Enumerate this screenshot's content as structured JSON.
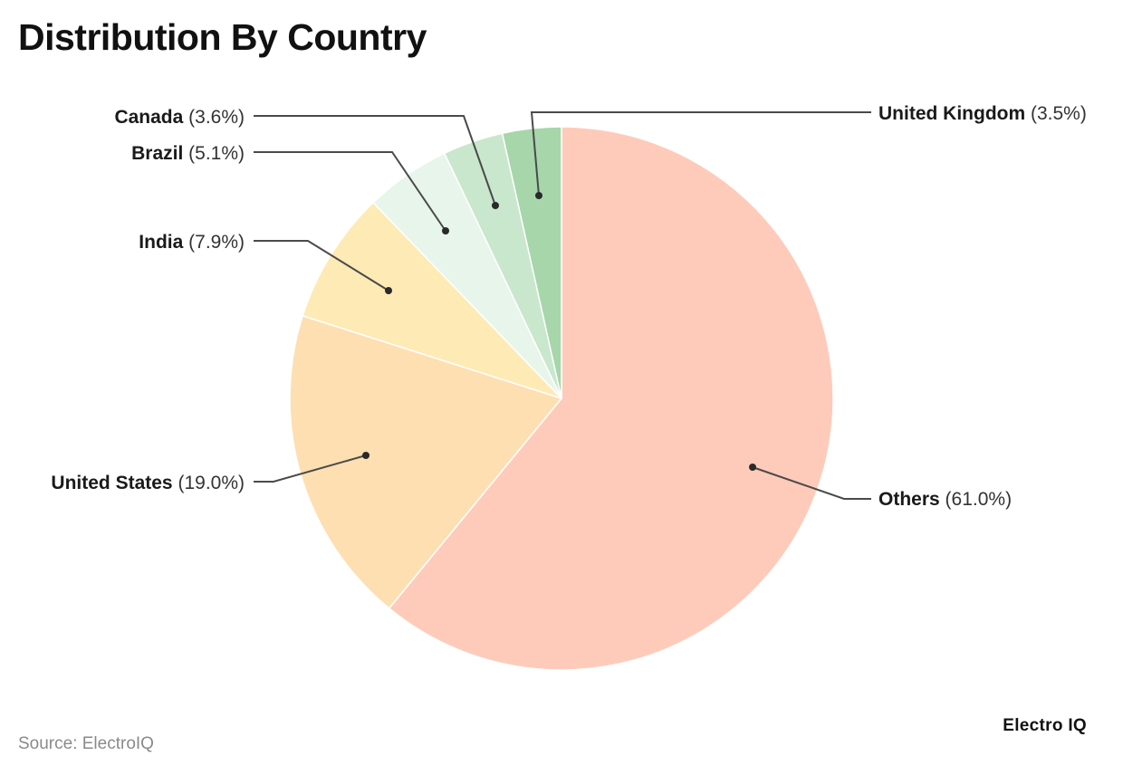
{
  "title": "Distribution By Country",
  "footer": {
    "source": "Source: ElectroIQ",
    "brand": "Electro IQ"
  },
  "chart_data": {
    "type": "pie",
    "title": "Distribution By Country",
    "start_angle_deg": 0,
    "direction": "clockwise",
    "slices": [
      {
        "label": "Others",
        "value": 61.0,
        "display": "(61.0%)",
        "color": "#FECBBA"
      },
      {
        "label": "United States",
        "value": 19.0,
        "display": "(19.0%)",
        "color": "#FDDFB2"
      },
      {
        "label": "India",
        "value": 7.9,
        "display": "(7.9%)",
        "color": "#FEEAB5"
      },
      {
        "label": "Brazil",
        "value": 5.1,
        "display": "(5.1%)",
        "color": "#E8F5EA"
      },
      {
        "label": "Canada",
        "value": 3.6,
        "display": "(3.6%)",
        "color": "#C9E7CC"
      },
      {
        "label": "United Kingdom",
        "value": 3.5,
        "display": "(3.5%)",
        "color": "#A6D6AA"
      }
    ],
    "legend": "none (leader-line labels)",
    "source": "Source: ElectroIQ"
  }
}
